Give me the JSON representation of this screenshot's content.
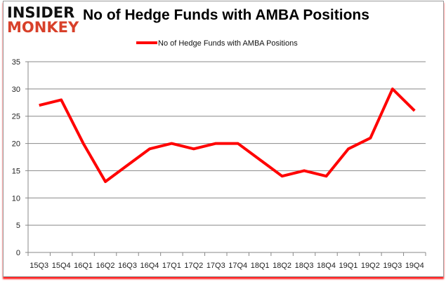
{
  "logo": {
    "line1": "INSIDER",
    "line2": "MONKEY"
  },
  "chart_data": {
    "type": "line",
    "title": "No of Hedge Funds with AMBA Positions",
    "xlabel": "",
    "ylabel": "",
    "categories": [
      "15Q3",
      "15Q4",
      "16Q1",
      "16Q2",
      "16Q3",
      "16Q4",
      "17Q1",
      "17Q2",
      "17Q3",
      "17Q4",
      "18Q1",
      "18Q2",
      "18Q3",
      "18Q4",
      "19Q1",
      "19Q2",
      "19Q3",
      "19Q4"
    ],
    "series": [
      {
        "name": "No of Hedge Funds with AMBA Positions",
        "color": "#ff0000",
        "values": [
          27,
          28,
          20,
          13,
          16,
          19,
          20,
          19,
          20,
          20,
          17,
          14,
          15,
          14,
          19,
          21,
          30,
          26
        ]
      }
    ],
    "ylim": [
      0,
      35
    ],
    "yticks": [
      0,
      5,
      10,
      15,
      20,
      25,
      30,
      35
    ],
    "grid": true,
    "legend": "top"
  }
}
